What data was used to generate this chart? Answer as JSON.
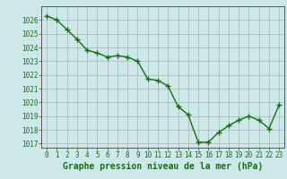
{
  "x": [
    0,
    1,
    2,
    3,
    4,
    5,
    6,
    7,
    8,
    9,
    10,
    11,
    12,
    13,
    14,
    15,
    16,
    17,
    18,
    19,
    20,
    21,
    22,
    23
  ],
  "y": [
    1026.3,
    1026.0,
    1025.3,
    1024.6,
    1023.8,
    1023.6,
    1023.3,
    1023.4,
    1023.3,
    1023.0,
    1021.7,
    1021.6,
    1021.2,
    1019.7,
    1019.1,
    1017.1,
    1017.1,
    1017.8,
    1018.3,
    1018.7,
    1019.0,
    1018.7,
    1018.1,
    1019.8
  ],
  "ylim": [
    1016.7,
    1027.0
  ],
  "xlim": [
    -0.5,
    23.5
  ],
  "yticks": [
    1017,
    1018,
    1019,
    1020,
    1021,
    1022,
    1023,
    1024,
    1025,
    1026
  ],
  "xticks": [
    0,
    1,
    2,
    3,
    4,
    5,
    6,
    7,
    8,
    9,
    10,
    11,
    12,
    13,
    14,
    15,
    16,
    17,
    18,
    19,
    20,
    21,
    22,
    23
  ],
  "line_color": "#1a6b1a",
  "marker": "+",
  "marker_size": 4,
  "marker_edge_width": 1.0,
  "line_width": 1.0,
  "bg_color": "#cce8e8",
  "grid_color": "#b0b0b0",
  "grid_color_minor": "#d8d8d8",
  "xlabel": "Graphe pression niveau de la mer (hPa)",
  "xlabel_fontsize": 7,
  "tick_fontsize": 5.5
}
